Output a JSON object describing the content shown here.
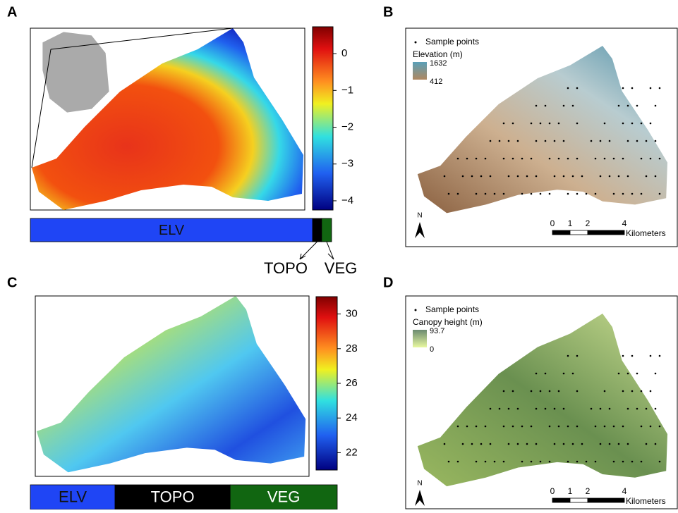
{
  "panels": [
    {
      "label": "A",
      "colorbar": {
        "lim": [
          -4.25,
          0.73
        ],
        "ticks": [
          0,
          {
            "value": -1,
            "label": "−1"
          },
          {
            "value": -2,
            "label": "−2"
          },
          {
            "value": -3,
            "label": "−3"
          },
          {
            "value": -4,
            "label": "−4"
          }
        ]
      },
      "partition": [
        {
          "name": "ELV",
          "value": 93.7,
          "color": "#1f45f5"
        },
        {
          "name": "TOPO",
          "value": 3.0,
          "color": "#000000"
        },
        {
          "name": "VEG",
          "value": 3.3,
          "color": "#116611"
        }
      ]
    },
    {
      "label": "B",
      "legend": {
        "points": "Sample points",
        "title": "Elevation (m)",
        "max": "1632",
        "min": "412"
      },
      "north": "N",
      "scale": {
        "ticks": [
          "0",
          "1",
          "2",
          "4"
        ],
        "unit": "Kilometers"
      }
    },
    {
      "label": "C",
      "colorbar": {
        "lim": [
          21.0,
          31.0
        ],
        "ticks": [
          30,
          28,
          26,
          24,
          22
        ]
      },
      "partition": [
        {
          "name": "ELV",
          "value": 27.6,
          "color": "#1f45f5"
        },
        {
          "name": "TOPO",
          "value": 37.5,
          "color": "#000000"
        },
        {
          "name": "VEG",
          "value": 34.9,
          "color": "#116611"
        }
      ]
    },
    {
      "label": "D",
      "legend": {
        "points": "Sample points",
        "title": "Canopy height (m)",
        "max": "93.7",
        "min": "0"
      },
      "north": "N",
      "scale": {
        "ticks": [
          "0",
          "1",
          "2",
          "4"
        ],
        "unit": "Kilometers"
      }
    }
  ]
}
